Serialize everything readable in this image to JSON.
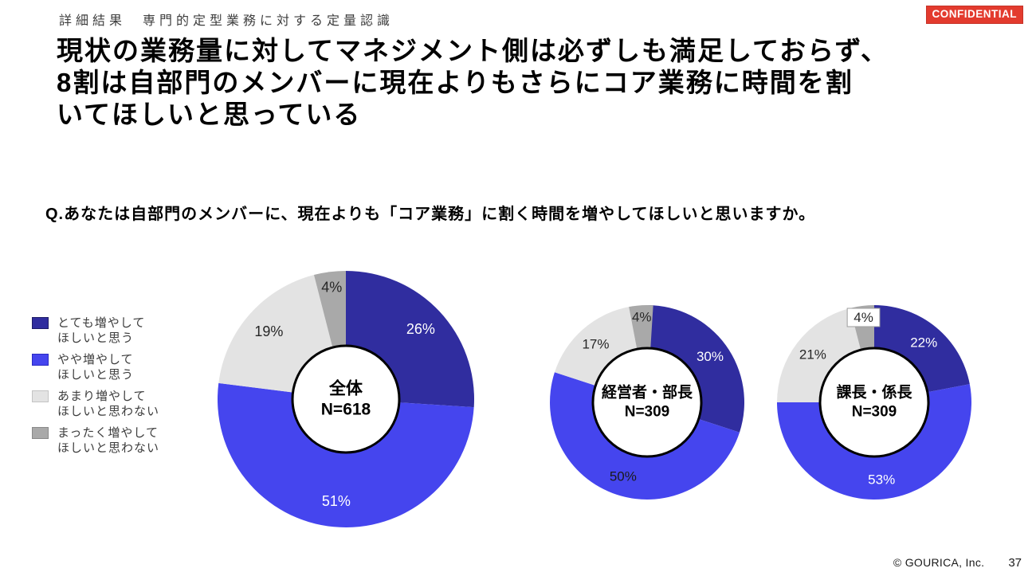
{
  "header": {
    "section_label": "詳細結果　専門的定型業務に対する定量認識",
    "confidential_label": "CONFIDENTIAL"
  },
  "title": {
    "line1": "現状の業務量に対してマネジメント側は必ずしも満足しておらず、",
    "line2": "8割は自部門のメンバーに現在よりもさらにコア業務に時間を割",
    "line3": "いてほしいと思っている"
  },
  "question": "Q.あなたは自部門のメンバーに、現在よりも「コア業務」に割く時間を増やしてほしいと思いますか。",
  "legend": {
    "items": [
      {
        "line1": "とても増やして",
        "line2": "ほしいと思う",
        "color": "#302d9f",
        "border": "#1d1b66"
      },
      {
        "line1": "やや増やして",
        "line2": "ほしいと思う",
        "color": "#4545ee",
        "border": "#2a2ac4"
      },
      {
        "line1": "あまり増やして",
        "line2": "ほしいと思わない",
        "color": "#e3e3e3",
        "border": "#c4c4c4"
      },
      {
        "line1": "まったく増やして",
        "line2": "ほしいと思わない",
        "color": "#a9a9a9",
        "border": "#8a8a8a"
      }
    ]
  },
  "chart_data": [
    {
      "type": "pie",
      "subtype": "donut",
      "center_title": "全体",
      "center_n": "N=618",
      "categories": [
        "とても増やしてほしいと思う",
        "やや増やしてほしいと思う",
        "あまり増やしてほしいと思わない",
        "まったく増やしてほしいと思わない"
      ],
      "values": [
        26,
        51,
        19,
        4
      ],
      "labels": [
        "26%",
        "51%",
        "19%",
        "4%"
      ],
      "label_colors": [
        "#ffffff",
        "#ffffff",
        "#262626",
        "#262626"
      ],
      "boxed": [
        false,
        false,
        false,
        false
      ],
      "colors": [
        "#302d9f",
        "#4545ee",
        "#e3e3e3",
        "#a9a9a9"
      ]
    },
    {
      "type": "pie",
      "subtype": "donut",
      "center_title": "経営者・部長",
      "center_n": "N=309",
      "categories": [
        "とても増やしてほしいと思う",
        "やや増やしてほしいと思う",
        "あまり増やしてほしいと思わない",
        "まったく増やしてほしいと思わない"
      ],
      "values": [
        30,
        50,
        17,
        4
      ],
      "labels": [
        "30%",
        "50%",
        "17%",
        "4%"
      ],
      "label_colors": [
        "#ffffff",
        "#1a1a1a",
        "#262626",
        "#262626"
      ],
      "boxed": [
        false,
        false,
        false,
        false
      ],
      "colors": [
        "#302d9f",
        "#4545ee",
        "#e3e3e3",
        "#a9a9a9"
      ]
    },
    {
      "type": "pie",
      "subtype": "donut",
      "center_title": "課長・係長",
      "center_n": "N=309",
      "categories": [
        "とても増やしてほしいと思う",
        "やや増やしてほしいと思う",
        "あまり増やしてほしいと思わない",
        "まったく増やしてほしいと思わない"
      ],
      "values": [
        22,
        53,
        21,
        4
      ],
      "labels": [
        "22%",
        "53%",
        "21%",
        "4%"
      ],
      "label_colors": [
        "#ffffff",
        "#ffffff",
        "#262626",
        "#262626"
      ],
      "boxed": [
        false,
        false,
        false,
        true
      ],
      "colors": [
        "#302d9f",
        "#4545ee",
        "#e3e3e3",
        "#a9a9a9"
      ]
    }
  ],
  "footer": {
    "copyright": "© GOURICA, Inc.",
    "page": "37"
  }
}
